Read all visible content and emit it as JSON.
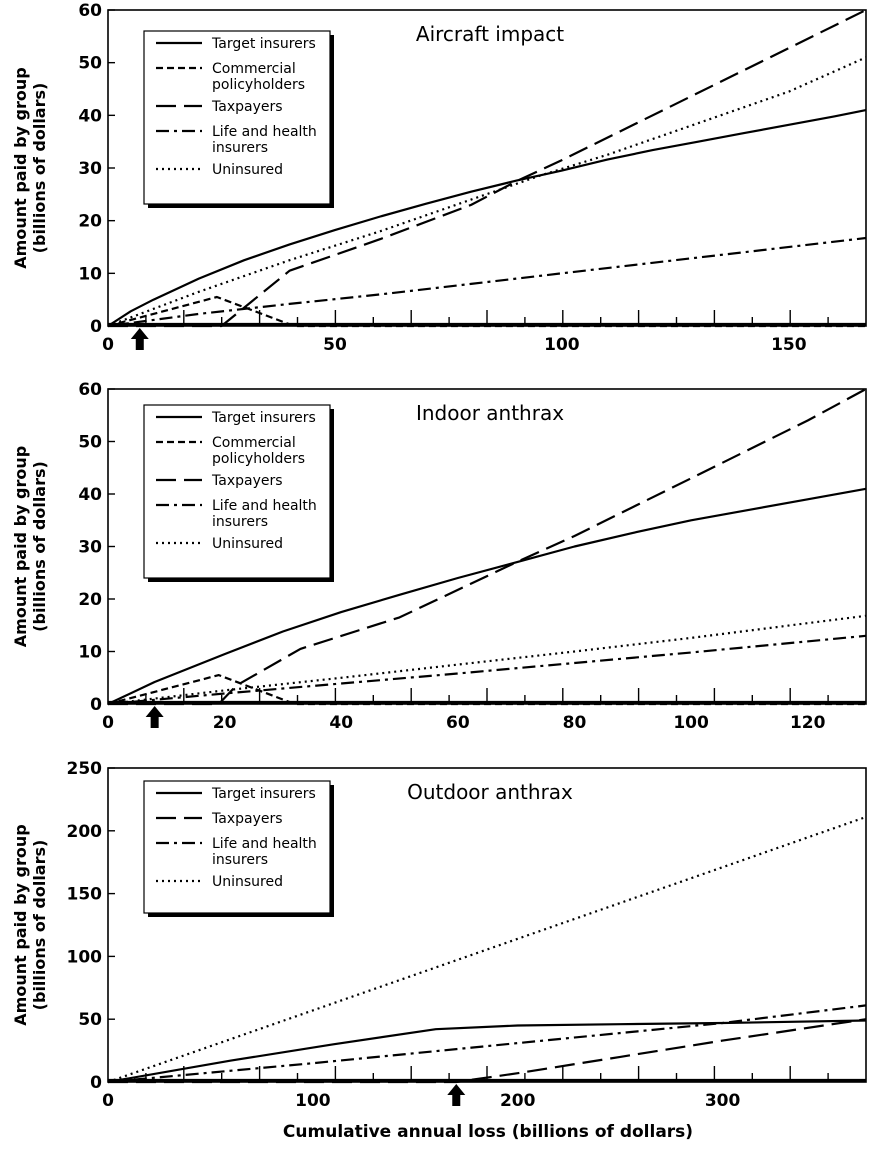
{
  "x_axis_label": "Cumulative annual loss (billions of dollars)",
  "chart_data": [
    {
      "type": "line",
      "title": "Aircraft impact",
      "ylabel": "Amount paid by group (billions of dollars)",
      "xlabel": "",
      "xlim": [
        0,
        167
      ],
      "ylim": [
        0,
        60
      ],
      "xticks": [
        0,
        50,
        100,
        150
      ],
      "yticks": [
        0,
        10,
        20,
        30,
        40,
        50,
        60
      ],
      "marker_x": 7,
      "legend_position": "top-left",
      "series": [
        {
          "name": "Target insurers",
          "style": "solid",
          "x": [
            0,
            5,
            10,
            20,
            30,
            40,
            50,
            60,
            70,
            80,
            90,
            100,
            110,
            120,
            130,
            140,
            150,
            160,
            167
          ],
          "y": [
            0,
            2.8,
            5.0,
            9.0,
            12.5,
            15.5,
            18.2,
            20.8,
            23.2,
            25.5,
            27.6,
            29.5,
            31.6,
            33.4,
            35.0,
            36.6,
            38.2,
            39.8,
            41
          ]
        },
        {
          "name": "Commercial policyholders",
          "style": "dashed",
          "x": [
            0,
            24,
            41,
            167
          ],
          "y": [
            0,
            5.5,
            0,
            0
          ]
        },
        {
          "name": "Taxpayers",
          "style": "longdash",
          "x": [
            0,
            25,
            30,
            40,
            60,
            80,
            90,
            100,
            167
          ],
          "y": [
            0,
            0,
            3.5,
            10.5,
            16.5,
            23.0,
            27.5,
            31.5,
            60
          ]
        },
        {
          "name": "Life and health insurers",
          "style": "dashdot",
          "x": [
            0,
            20,
            40,
            60,
            80,
            100,
            120,
            140,
            167
          ],
          "y": [
            0,
            2.3,
            4.2,
            6.0,
            8.0,
            10.0,
            12.0,
            14.0,
            16.7
          ]
        },
        {
          "name": "Uninsured",
          "style": "dotted",
          "x": [
            0,
            20,
            40,
            60,
            80,
            95,
            110,
            130,
            150,
            167
          ],
          "y": [
            0,
            6.5,
            12.5,
            18.0,
            24.0,
            28.5,
            32.5,
            38.5,
            44.5,
            51
          ]
        }
      ]
    },
    {
      "type": "line",
      "title": "Indoor anthrax",
      "ylabel": "Amount paid by group (billions of dollars)",
      "xlabel": "",
      "xlim": [
        0,
        130
      ],
      "ylim": [
        0,
        60
      ],
      "xticks": [
        0,
        20,
        40,
        60,
        80,
        100,
        120
      ],
      "yticks": [
        0,
        10,
        20,
        30,
        40,
        50,
        60
      ],
      "marker_x": 8,
      "legend_position": "top-left",
      "series": [
        {
          "name": "Target insurers",
          "style": "solid",
          "x": [
            0,
            8,
            20,
            30,
            40,
            50,
            60,
            70,
            80,
            90,
            100,
            110,
            120,
            130
          ],
          "y": [
            0,
            4.2,
            9.5,
            13.8,
            17.5,
            20.8,
            24.0,
            27.0,
            30.0,
            32.6,
            35.0,
            37.0,
            39.0,
            41
          ]
        },
        {
          "name": "Commercial policyholders",
          "style": "dashed",
          "x": [
            0,
            19,
            32,
            130
          ],
          "y": [
            0,
            5.5,
            0,
            0
          ]
        },
        {
          "name": "Taxpayers",
          "style": "longdash",
          "x": [
            0,
            19,
            22,
            33,
            50,
            70,
            80,
            90,
            100,
            110,
            120,
            130
          ],
          "y": [
            0,
            0,
            3.5,
            10.5,
            16.5,
            27.0,
            32.0,
            37.5,
            43.0,
            48.5,
            54.0,
            60
          ]
        },
        {
          "name": "Life and health insurers",
          "style": "dashdot",
          "x": [
            0,
            20,
            40,
            60,
            80,
            100,
            130
          ],
          "y": [
            0,
            2.0,
            3.9,
            5.8,
            7.8,
            9.8,
            13
          ]
        },
        {
          "name": "Uninsured",
          "style": "dotted",
          "x": [
            0,
            20,
            40,
            60,
            80,
            100,
            130
          ],
          "y": [
            0,
            2.6,
            5.0,
            7.5,
            10.0,
            12.6,
            16.8
          ]
        }
      ]
    },
    {
      "type": "line",
      "title": "Outdoor anthrax",
      "ylabel": "Amount paid by group (billions of dollars)",
      "xlabel": "Cumulative annual loss (billions of dollars)",
      "xlim": [
        0,
        370
      ],
      "ylim": [
        0,
        250
      ],
      "xticks": [
        0,
        100,
        200,
        300
      ],
      "yticks": [
        0,
        50,
        100,
        150,
        200,
        250
      ],
      "marker_x": 170,
      "legend_position": "top-left",
      "series": [
        {
          "name": "Target insurers",
          "style": "solid",
          "x": [
            0,
            60,
            110,
            160,
            200,
            250,
            300,
            370
          ],
          "y": [
            0,
            17,
            30,
            42,
            45,
            46,
            47,
            49
          ]
        },
        {
          "name": "Taxpayers",
          "style": "longdash",
          "x": [
            0,
            170,
            200,
            250,
            300,
            370
          ],
          "y": [
            0,
            0,
            7,
            20,
            33,
            50
          ]
        },
        {
          "name": "Life and health insurers",
          "style": "dashdot",
          "x": [
            0,
            100,
            200,
            300,
            370
          ],
          "y": [
            0,
            15,
            31,
            47,
            61
          ]
        },
        {
          "name": "Uninsured",
          "style": "dotted",
          "x": [
            0,
            100,
            200,
            300,
            370
          ],
          "y": [
            0,
            57,
            114,
            171,
            211
          ]
        }
      ]
    }
  ]
}
